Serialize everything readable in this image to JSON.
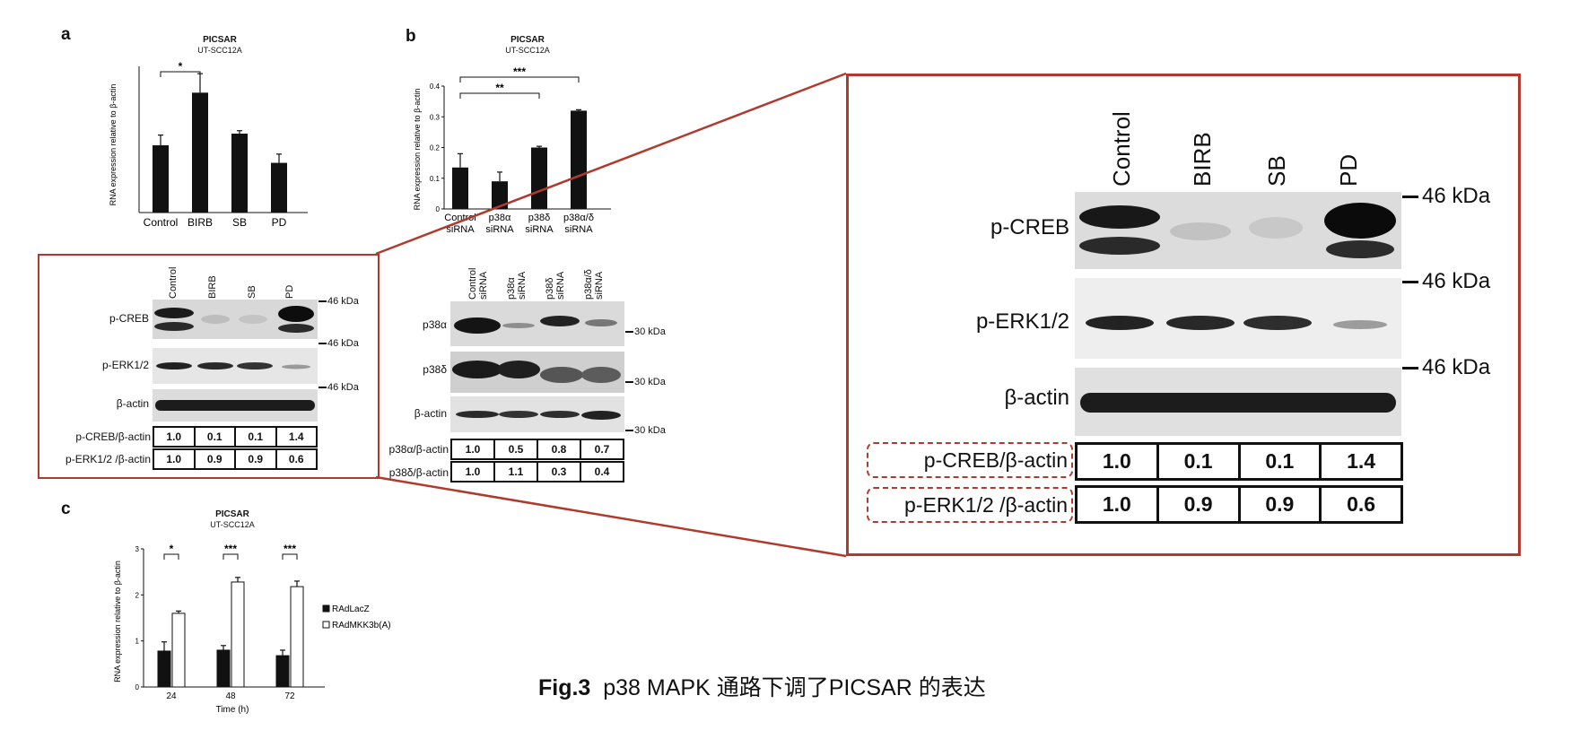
{
  "caption": {
    "fig": "Fig.3",
    "text": "p38 MAPK 通路下调了PICSAR 的表达"
  },
  "colors": {
    "frame": "#b03a2e",
    "bar": "#111111"
  },
  "panel_a": {
    "letter": "a",
    "title": "PICSAR",
    "subtitle": "UT-SCC12A",
    "blot_lanes": [
      "Control",
      "BIRB",
      "SB",
      "PD"
    ],
    "blot_rows": [
      "p-CREB",
      "p-ERK1/2",
      "β-actin"
    ],
    "kda": [
      "46 kDa",
      "46 kDa",
      "46 kDa"
    ],
    "quant": [
      {
        "label": "p-CREB/β-actin",
        "values": [
          "1.0",
          "0.1",
          "0.1",
          "1.4"
        ]
      },
      {
        "label": "p-ERK1/2 /β-actin",
        "values": [
          "1.0",
          "0.9",
          "0.9",
          "0.6"
        ]
      }
    ]
  },
  "panel_b": {
    "letter": "b",
    "title": "PICSAR",
    "subtitle": "UT-SCC12A",
    "blot_lanes": [
      "Control siRNA",
      "p38α siRNA",
      "p38δ siRNA",
      "p38α/δ siRNA"
    ],
    "blot_rows": [
      "p38α",
      "p38δ",
      "β-actin"
    ],
    "kda": [
      "30 kDa",
      "30 kDa",
      "30 kDa"
    ],
    "quant": [
      {
        "label": "p38α/β-actin",
        "values": [
          "1.0",
          "0.5",
          "0.8",
          "0.7"
        ]
      },
      {
        "label": "p38δ/β-actin",
        "values": [
          "1.0",
          "1.1",
          "0.3",
          "0.4"
        ]
      }
    ]
  },
  "panel_c": {
    "letter": "c",
    "title": "PICSAR",
    "subtitle": "UT-SCC12A"
  },
  "zoom": {
    "lanes": [
      "Control",
      "BIRB",
      "SB",
      "PD"
    ],
    "rows": [
      "p-CREB",
      "p-ERK1/2",
      "β-actin"
    ],
    "kda": [
      "46 kDa",
      "46 kDa",
      "46 kDa"
    ],
    "quant": [
      {
        "label": "p-CREB/β-actin",
        "values": [
          "1.0",
          "0.1",
          "0.1",
          "1.4"
        ]
      },
      {
        "label": "p-ERK1/2 /β-actin",
        "values": [
          "1.0",
          "0.9",
          "0.9",
          "0.6"
        ]
      }
    ]
  },
  "chart_data": [
    {
      "type": "bar",
      "panel": "a",
      "title": "PICSAR",
      "subtitle": "UT-SCC12A",
      "categories": [
        "Control",
        "BIRB",
        "SB",
        "PD"
      ],
      "values": [
        0.23,
        0.41,
        0.27,
        0.17
      ],
      "errors": [
        0.035,
        0.065,
        0.01,
        0.03
      ],
      "ylabel": "RNA expression relative to β-actin",
      "significance": [
        {
          "from": "Control",
          "to": "BIRB",
          "label": "*"
        }
      ]
    },
    {
      "type": "bar",
      "panel": "b",
      "title": "PICSAR",
      "subtitle": "UT-SCC12A",
      "categories": [
        "Control siRNA",
        "p38α siRNA",
        "p38δ siRNA",
        "p38α/δ siRNA"
      ],
      "values": [
        0.135,
        0.09,
        0.2,
        0.32
      ],
      "errors": [
        0.045,
        0.03,
        0.004,
        0.003
      ],
      "ylabel": "RNA expression relative to β-actin",
      "ylim": [
        0,
        0.4
      ],
      "yticks": [
        "0",
        "0.1",
        "0.2",
        "0.3",
        "0.4"
      ],
      "significance": [
        {
          "from": "Control siRNA",
          "to": "p38δ siRNA",
          "label": "**"
        },
        {
          "from": "Control siRNA",
          "to": "p38α/δ siRNA",
          "label": "***"
        }
      ]
    },
    {
      "type": "bar",
      "panel": "c",
      "title": "PICSAR",
      "subtitle": "UT-SCC12A",
      "categories": [
        "24",
        "48",
        "72"
      ],
      "xlabel": "Time (h)",
      "ylabel": "RNA expression relative to β-actin",
      "ylim": [
        0,
        3
      ],
      "yticks": [
        "0",
        "1",
        "2",
        "3"
      ],
      "series": [
        {
          "name": "RAdLacZ",
          "fill": "#111111",
          "values": [
            0.78,
            0.8,
            0.68
          ],
          "errors": [
            0.2,
            0.1,
            0.12
          ]
        },
        {
          "name": "RAdMKK3b(A)",
          "fill": "#ffffff",
          "values": [
            1.6,
            2.28,
            2.18
          ],
          "errors": [
            0.05,
            0.1,
            0.12
          ]
        }
      ],
      "significance": [
        {
          "category": "24",
          "label": "*"
        },
        {
          "category": "48",
          "label": "***"
        },
        {
          "category": "72",
          "label": "***"
        }
      ],
      "legend": "right"
    }
  ]
}
